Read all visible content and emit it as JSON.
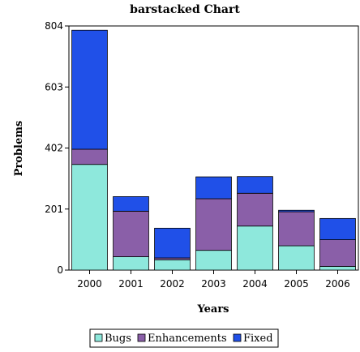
{
  "chart_data": {
    "type": "bar",
    "stacked": true,
    "title": "barstacked Chart",
    "xlabel": "Years",
    "ylabel": "Problems",
    "categories": [
      "2000",
      "2001",
      "2002",
      "2003",
      "2004",
      "2005",
      "2006"
    ],
    "series": [
      {
        "name": "Bugs",
        "color": "#8ee8dc",
        "values": [
          348,
          44,
          34,
          65,
          145,
          80,
          12
        ]
      },
      {
        "name": "Enhancements",
        "color": "#8a5fa8",
        "values": [
          50,
          150,
          6,
          170,
          108,
          112,
          88
        ]
      },
      {
        "name": "Fixed",
        "color": "#2050e8",
        "values": [
          392,
          48,
          98,
          72,
          55,
          5,
          70
        ]
      }
    ],
    "ylim": [
      0,
      804
    ],
    "yticks": [
      0,
      201,
      402,
      603,
      804
    ],
    "grid": false,
    "legend_position": "bottom-center"
  }
}
